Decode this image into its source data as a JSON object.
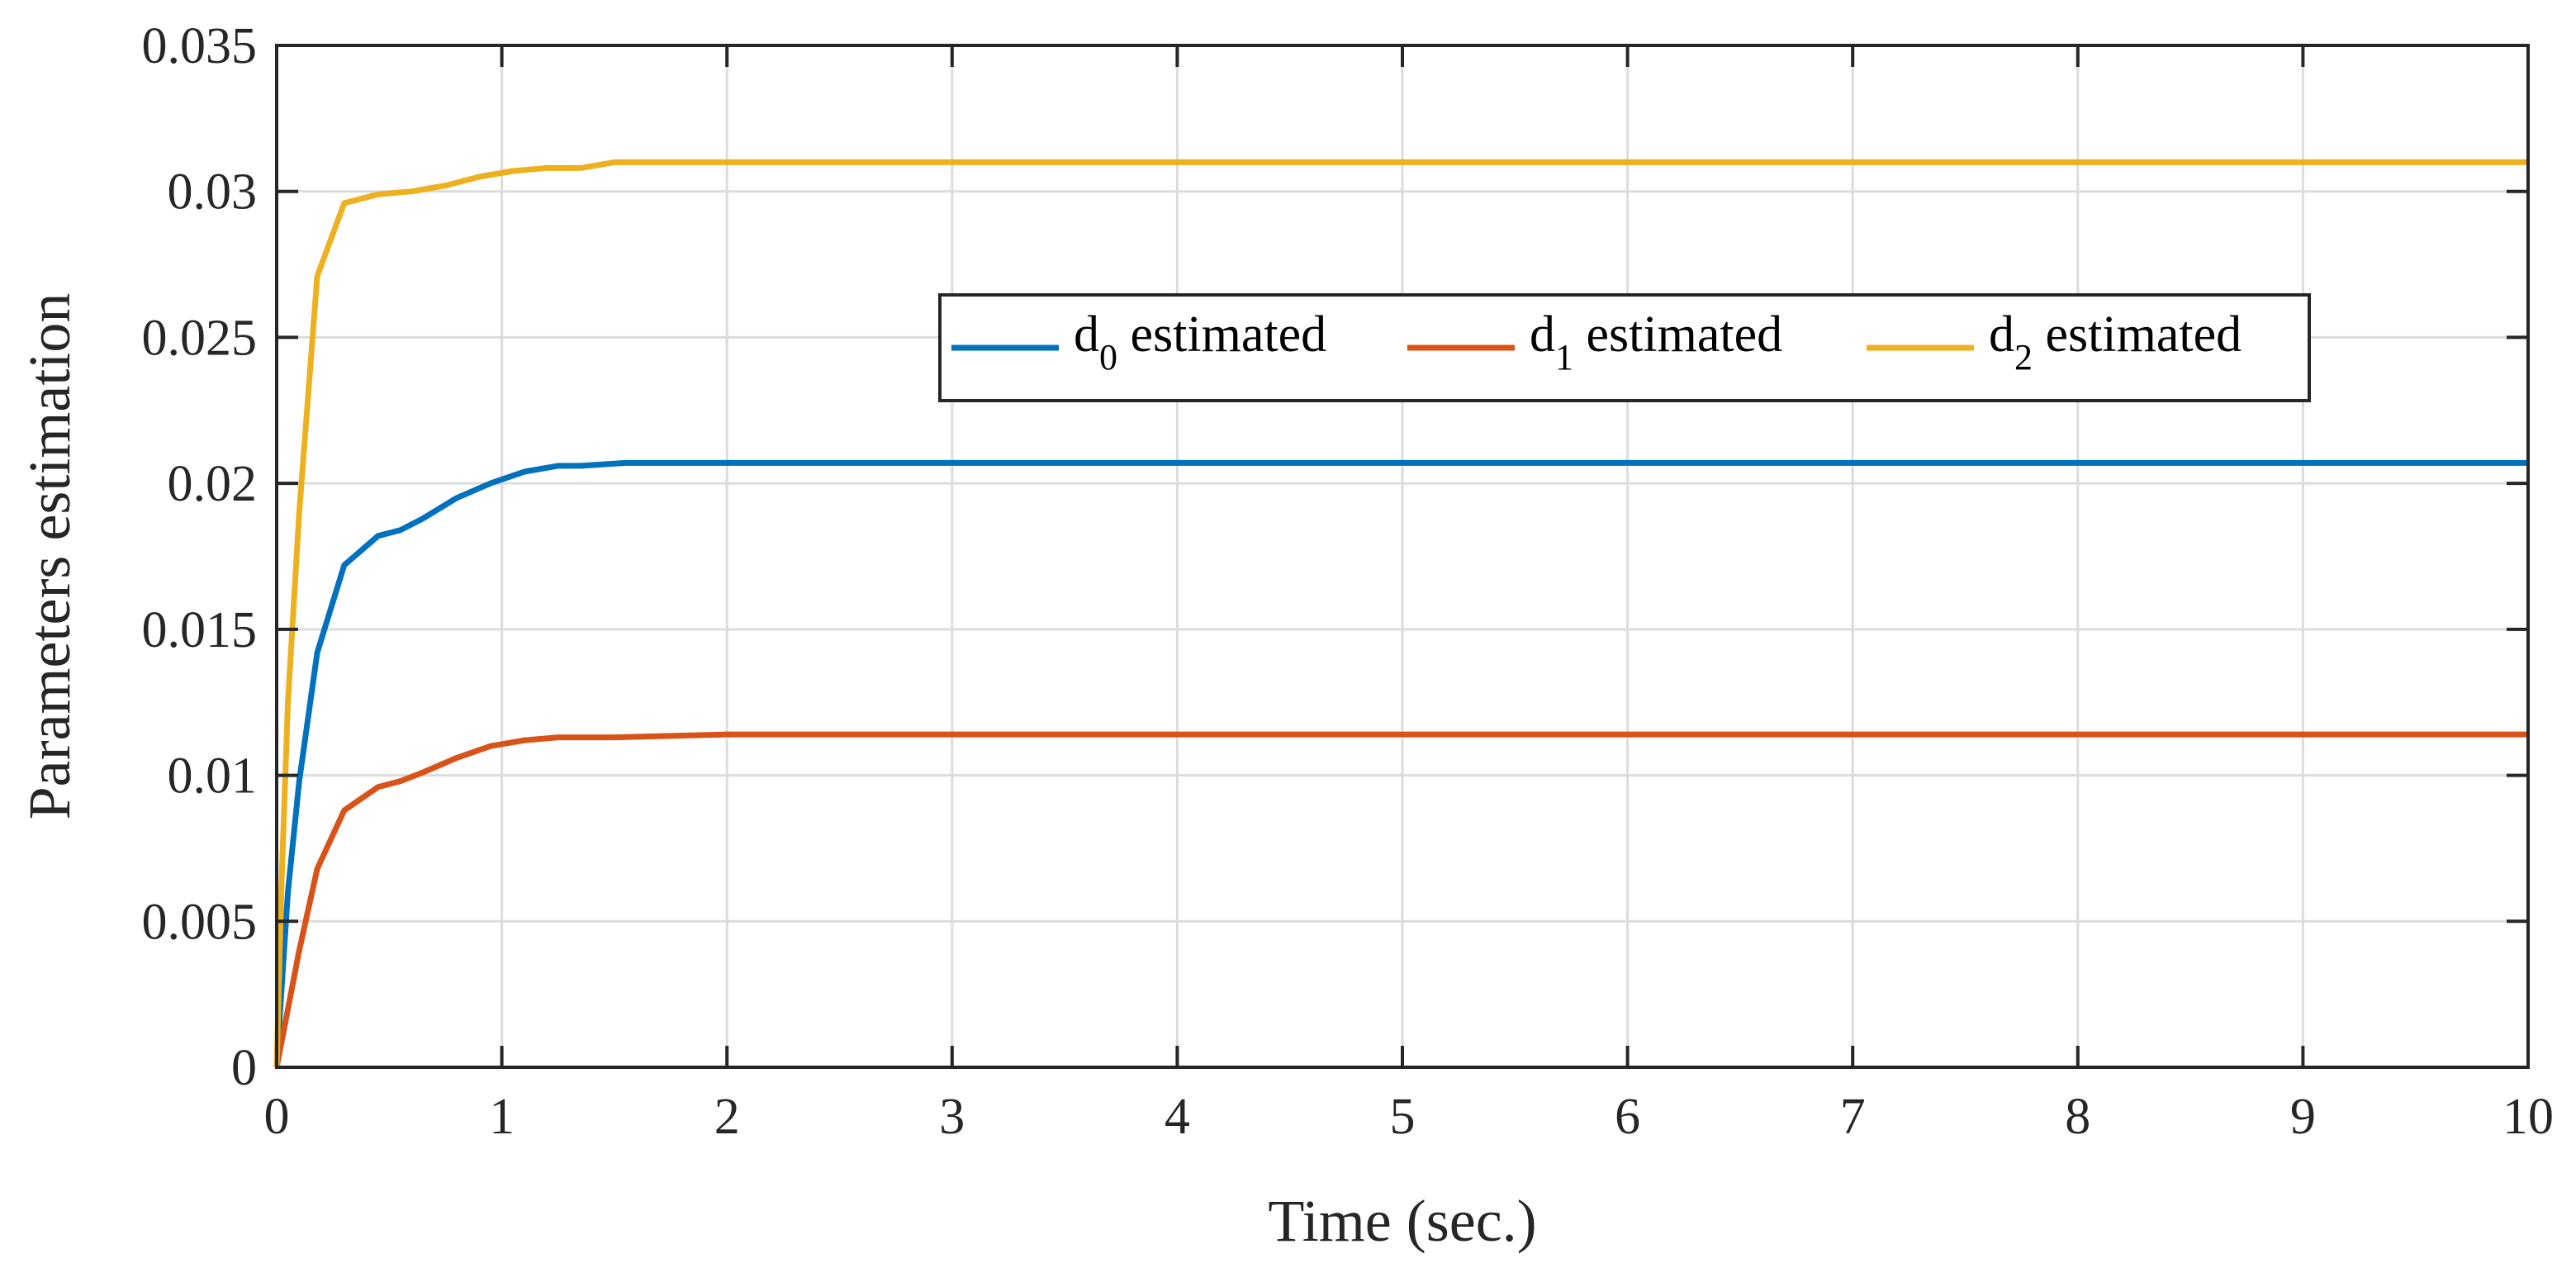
{
  "chart_data": {
    "type": "line",
    "title": "",
    "xlabel": "Time (sec.)",
    "ylabel": "Parameters estimation",
    "xlim": [
      0,
      10
    ],
    "ylim": [
      0,
      0.035
    ],
    "xticks": [
      0,
      1,
      2,
      3,
      4,
      5,
      6,
      7,
      8,
      9,
      10
    ],
    "xtick_labels": [
      "0",
      "1",
      "2",
      "3",
      "4",
      "5",
      "6",
      "7",
      "8",
      "9",
      "10"
    ],
    "yticks": [
      0,
      0.005,
      0.01,
      0.015,
      0.02,
      0.025,
      0.03,
      0.035
    ],
    "ytick_labels": [
      "0",
      "0.005",
      "0.01",
      "0.015",
      "0.02",
      "0.025",
      "0.03",
      "0.035"
    ],
    "grid": true,
    "legend_position": "upper-center-right",
    "series": [
      {
        "name": "d0 estimated",
        "legend_main": "d",
        "legend_sub": "0",
        "legend_rest": " estimated",
        "color": "#0072BD",
        "x": [
          0,
          0.02,
          0.05,
          0.1,
          0.18,
          0.3,
          0.45,
          0.55,
          0.65,
          0.8,
          0.95,
          1.1,
          1.25,
          1.35,
          1.55,
          2.0,
          10
        ],
        "y": [
          0,
          0.0025,
          0.006,
          0.0098,
          0.0142,
          0.0172,
          0.0182,
          0.0184,
          0.0188,
          0.0195,
          0.02,
          0.0204,
          0.0206,
          0.0206,
          0.0207,
          0.0207,
          0.0207
        ]
      },
      {
        "name": "d1 estimated",
        "legend_main": "d",
        "legend_sub": "1",
        "legend_rest": " estimated",
        "color": "#D95319",
        "x": [
          0,
          0.03,
          0.1,
          0.18,
          0.3,
          0.45,
          0.55,
          0.65,
          0.8,
          0.95,
          1.1,
          1.25,
          1.5,
          2.0,
          10
        ],
        "y": [
          0,
          0.0012,
          0.004,
          0.0068,
          0.0088,
          0.0096,
          0.0098,
          0.0101,
          0.0106,
          0.011,
          0.0112,
          0.0113,
          0.0113,
          0.0114,
          0.0114
        ]
      },
      {
        "name": "d2 estimated",
        "legend_main": "d",
        "legend_sub": "2",
        "legend_rest": " estimated",
        "color": "#EDB120",
        "x": [
          0,
          0.02,
          0.05,
          0.1,
          0.18,
          0.3,
          0.45,
          0.6,
          0.75,
          0.9,
          1.05,
          1.2,
          1.35,
          1.5,
          2.0,
          10
        ],
        "y": [
          0,
          0.006,
          0.0125,
          0.019,
          0.0271,
          0.0296,
          0.0299,
          0.03,
          0.0302,
          0.0305,
          0.0307,
          0.0308,
          0.0308,
          0.031,
          0.031,
          0.031
        ]
      }
    ]
  }
}
